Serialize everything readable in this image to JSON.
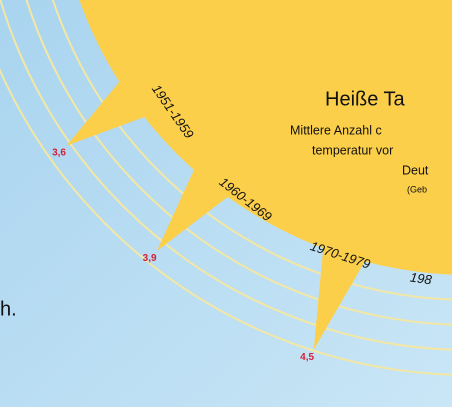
{
  "title": "Heiße Ta",
  "subtitle_lines": [
    "Mittlere Anzahl c",
    "temperatur vor",
    "Deut",
    "(Geb"
  ],
  "side_text": "h.",
  "rays": [
    {
      "period": "1951-1959",
      "value": 3.6,
      "label": "3,6"
    },
    {
      "period": "1960-1969",
      "value": 3.9,
      "label": "3,9"
    },
    {
      "period": "1970-1979",
      "value": 4.5,
      "label": "4,5"
    }
  ],
  "next_period": "198"
}
